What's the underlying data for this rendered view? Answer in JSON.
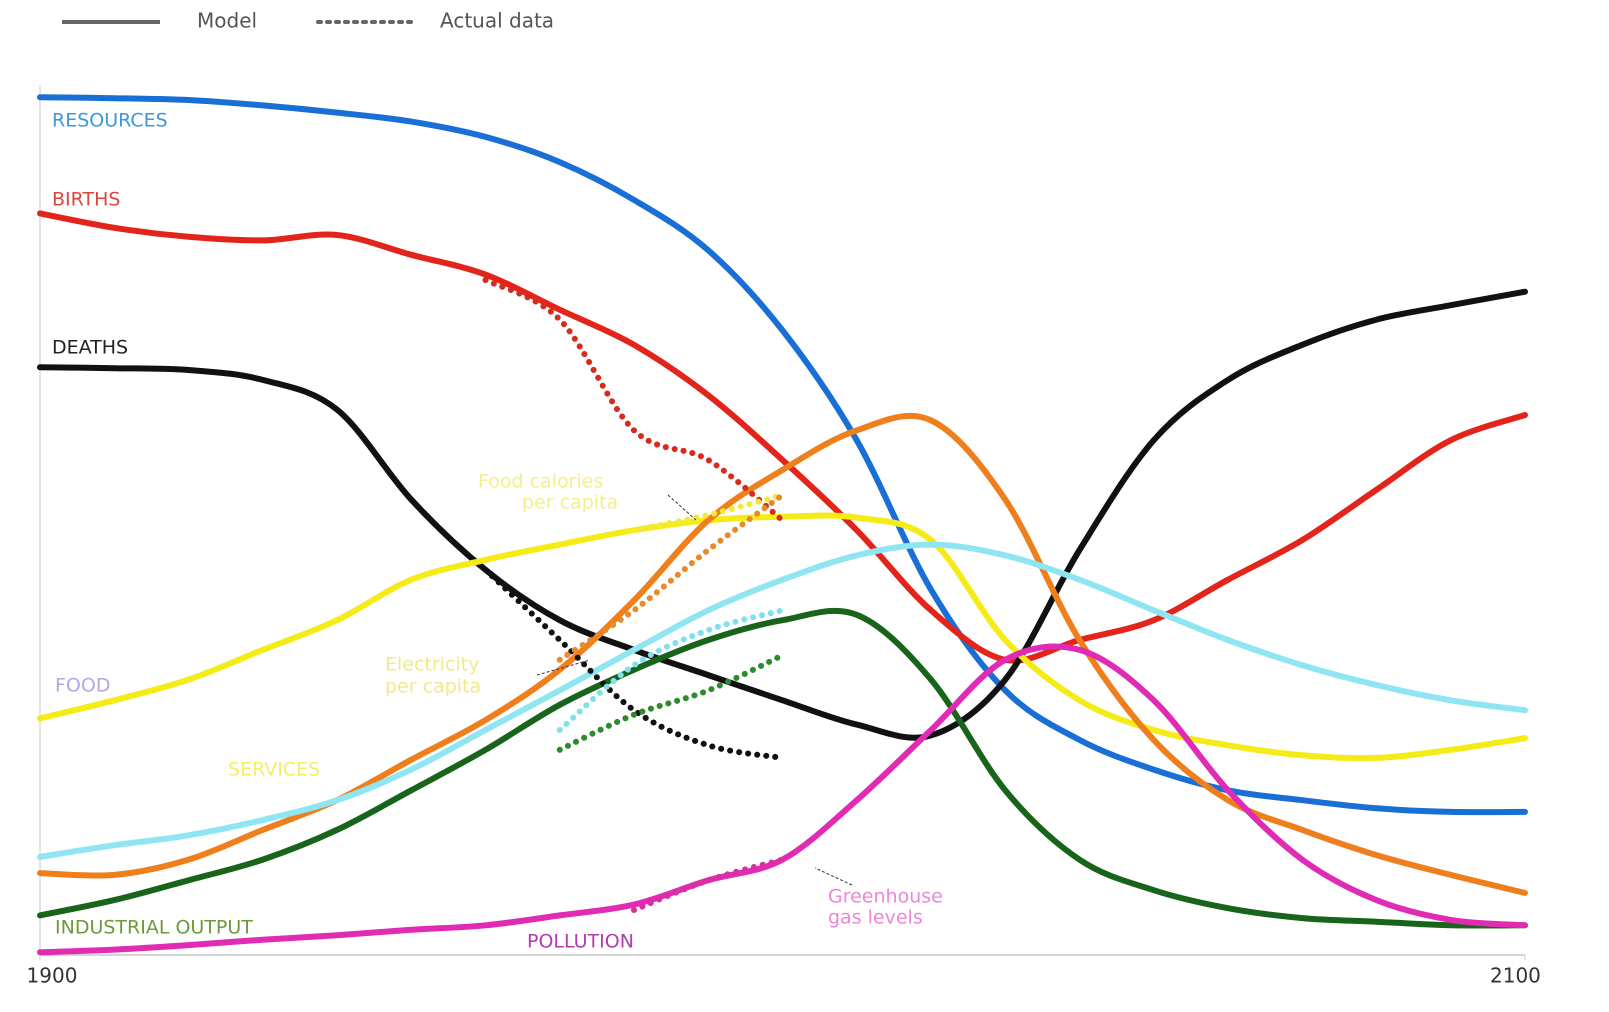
{
  "chart_data": {
    "type": "line",
    "legend": [
      {
        "label": "Model",
        "style": "solid",
        "color": "#666666"
      },
      {
        "label": "Actual data",
        "style": "dotted",
        "color": "#666666"
      }
    ],
    "x": [
      1900,
      1910,
      1920,
      1930,
      1940,
      1950,
      1960,
      1970,
      1980,
      1990,
      2000,
      2010,
      2020,
      2030,
      2040,
      2050,
      2060,
      2070,
      2080,
      2090,
      2100
    ],
    "xlim": [
      1900,
      2100
    ],
    "xticks": [
      1900,
      2100
    ],
    "ylim": [
      0,
      100
    ],
    "series": [
      {
        "name": "RESOURCES",
        "color": "#1a6fd6",
        "style": "solid",
        "values": [
          95.3,
          95.2,
          95,
          94.4,
          93.6,
          92.6,
          90.9,
          88.1,
          83.9,
          78.3,
          69.4,
          57.2,
          40.6,
          29.4,
          23.9,
          20.6,
          18.3,
          17.2,
          16.3,
          15.9,
          15.9
        ]
      },
      {
        "name": "BIRTHS",
        "color": "#e3241b",
        "style": "solid",
        "values": [
          82.4,
          80.8,
          79.8,
          79.4,
          80,
          77.8,
          75.6,
          71.7,
          67.8,
          62.2,
          55,
          47.2,
          38.3,
          32.8,
          35,
          37.2,
          41.7,
          46.1,
          51.7,
          57.2,
          60
        ]
      },
      {
        "name": "DEATHS",
        "color": "#111111",
        "style": "solid",
        "values": [
          65.3,
          65.2,
          65,
          63.9,
          60.6,
          50.6,
          42.8,
          37.2,
          33.9,
          31.1,
          28.3,
          25.6,
          24.4,
          30.6,
          45,
          57.2,
          63.9,
          67.8,
          70.6,
          72.2,
          73.7
        ]
      },
      {
        "name": "FOOD",
        "color": "#f5ec17",
        "style": "solid",
        "values": [
          26.3,
          28.3,
          30.6,
          33.9,
          37.2,
          41.7,
          43.9,
          45.6,
          47.2,
          48.3,
          48.7,
          48.6,
          46.1,
          35,
          28.3,
          25,
          23.3,
          22.2,
          21.9,
          22.8,
          24.1
        ]
      },
      {
        "name": "SERVICES",
        "color": "#ee7f1c",
        "style": "solid",
        "values": [
          9.1,
          8.9,
          10.6,
          13.9,
          17.2,
          21.7,
          26.1,
          31.7,
          39.4,
          48.3,
          53.9,
          58.3,
          59.4,
          50.6,
          35,
          23.9,
          17.2,
          13.9,
          11.1,
          8.9,
          6.9
        ]
      },
      {
        "color": "#8fe6f2",
        "style": "solid",
        "values": [
          10.9,
          12.2,
          13.3,
          15,
          17.2,
          20.6,
          25,
          29.4,
          33.9,
          38.3,
          41.7,
          44.4,
          45.6,
          44.4,
          41.7,
          38.3,
          35,
          32.2,
          30,
          28.3,
          27.2
        ]
      },
      {
        "name": "INDUSTRIAL OUTPUT",
        "color": "#17641a",
        "style": "solid",
        "values": [
          4.4,
          6.1,
          8.3,
          10.6,
          13.9,
          18.3,
          22.8,
          27.8,
          31.7,
          35,
          37.2,
          37.8,
          30.6,
          18.3,
          10.6,
          7.2,
          5.2,
          4.1,
          3.7,
          3.3,
          3.3
        ]
      },
      {
        "name": "POLLUTION",
        "color": "#e02bb4",
        "style": "solid",
        "values": [
          0.3,
          0.6,
          1.1,
          1.7,
          2.2,
          2.8,
          3.3,
          4.4,
          5.6,
          8.3,
          10.6,
          17.2,
          25,
          32.8,
          33.9,
          28.3,
          18.3,
          10.6,
          6.1,
          3.9,
          3.3
        ]
      },
      {
        "color": "#d82a1f",
        "style": "dotted",
        "values": [
          null,
          null,
          null,
          null,
          null,
          null,
          75,
          70.6,
          58.3,
          55,
          48.3,
          null,
          null,
          null,
          null,
          null,
          null,
          null,
          null,
          null,
          null
        ]
      },
      {
        "color": "#111111",
        "style": "dotted",
        "values": [
          null,
          null,
          null,
          null,
          null,
          null,
          42.8,
          35,
          27.2,
          23.3,
          21.9,
          null,
          null,
          null,
          null,
          null,
          null,
          null,
          null,
          null,
          null
        ]
      },
      {
        "color": "#f2ea3a",
        "style": "dotted",
        "annotation": [
          "Food calories",
          "per capita"
        ],
        "values": [
          null,
          null,
          null,
          null,
          null,
          null,
          null,
          null,
          47.2,
          48.9,
          51.1,
          null,
          null,
          null,
          null,
          null,
          null,
          null,
          null,
          null,
          null
        ]
      },
      {
        "color": "#e98a2a",
        "style": "dotted",
        "annotation": [
          "Electricity",
          "per capita"
        ],
        "values": [
          null,
          null,
          null,
          null,
          null,
          null,
          null,
          32.8,
          38.3,
          45,
          51.1,
          null,
          null,
          null,
          null,
          null,
          null,
          null,
          null,
          null,
          null
        ]
      },
      {
        "color": "#7fe0ee",
        "style": "dotted",
        "values": [
          null,
          null,
          null,
          null,
          null,
          null,
          null,
          25,
          32.2,
          36.1,
          38.3,
          null,
          null,
          null,
          null,
          null,
          null,
          null,
          null,
          null,
          null
        ]
      },
      {
        "color": "#2f8a2a",
        "style": "dotted",
        "values": [
          null,
          null,
          null,
          null,
          null,
          null,
          null,
          22.8,
          26.7,
          29.4,
          33.3,
          null,
          null,
          null,
          null,
          null,
          null,
          null,
          null,
          null,
          null
        ]
      },
      {
        "color": "#d8319e",
        "style": "dotted",
        "annotation": [
          "Greenhouse",
          "gas levels"
        ],
        "values": [
          null,
          null,
          null,
          null,
          null,
          null,
          null,
          null,
          5,
          8.3,
          10.6,
          null,
          null,
          null,
          null,
          null,
          null,
          null,
          null,
          null,
          null
        ]
      }
    ]
  }
}
